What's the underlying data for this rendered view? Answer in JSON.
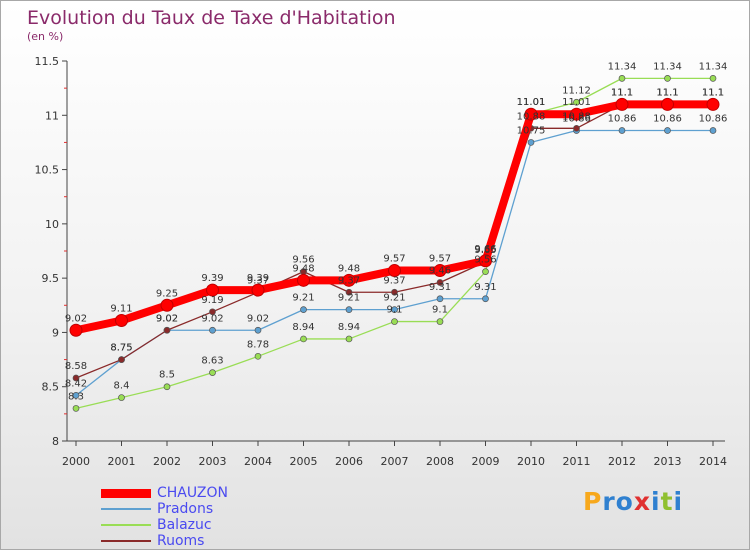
{
  "header": {
    "title": "Evolution du Taux de Taxe d'Habitation",
    "unit": "(en %)"
  },
  "chart_data": {
    "type": "line",
    "title": "Evolution du Taux de Taxe d'Habitation",
    "ylabel": "(en %)",
    "xlabel": "",
    "ylim": [
      8,
      11.5
    ],
    "y_ticks": [
      "8",
      "8.5",
      "9",
      "9.5",
      "10",
      "10.5",
      "11",
      "11.5"
    ],
    "categories": [
      "2000",
      "2001",
      "2002",
      "2003",
      "2004",
      "2005",
      "2006",
      "2007",
      "2008",
      "2009",
      "2010",
      "2011",
      "2012",
      "2013",
      "2014"
    ],
    "grid": false,
    "legend": "bottom-left",
    "series": [
      {
        "name": "CHAUZON",
        "color": "#ff0000",
        "values": [
          9.02,
          9.11,
          9.25,
          9.39,
          9.39,
          9.48,
          9.48,
          9.57,
          9.57,
          9.66,
          11.01,
          11.01,
          11.1,
          11.1,
          11.1
        ],
        "labels": [
          "9.02",
          "9.11",
          "9.25",
          "9.39",
          "9.39",
          "9.48",
          "9.48",
          "9.57",
          "9.57",
          "9.66",
          "11.01",
          "11.01",
          "11.1",
          "11.1",
          "11.1"
        ]
      },
      {
        "name": "Pradons",
        "color": "#5ea0d0",
        "values": [
          8.42,
          8.75,
          9.02,
          9.02,
          9.02,
          9.21,
          9.21,
          9.21,
          9.31,
          9.31,
          10.75,
          10.86,
          10.86,
          10.86,
          10.86
        ],
        "labels": [
          "8.42",
          "8.75",
          "9.02",
          "9.02",
          "9.02",
          "9.21",
          "9.21",
          "9.21",
          "9.31",
          "9.31",
          "10.75",
          "10.86",
          "10.86",
          "10.86",
          "10.86"
        ]
      },
      {
        "name": "Balazuc",
        "color": "#99dd55",
        "values": [
          8.3,
          8.4,
          8.5,
          8.63,
          8.78,
          8.94,
          8.94,
          9.1,
          9.1,
          9.56,
          11.01,
          11.12,
          11.34,
          11.34,
          11.34
        ],
        "labels": [
          "8.3",
          "8.4",
          "8.5",
          "8.63",
          "8.78",
          "8.94",
          "8.94",
          "9.1",
          "9.1",
          "9.56",
          "11.01",
          "11.12",
          "11.34",
          "11.34",
          "11.34"
        ]
      },
      {
        "name": "Ruoms",
        "color": "#8a2a2a",
        "values": [
          8.58,
          8.75,
          9.02,
          9.19,
          9.37,
          9.56,
          9.37,
          9.37,
          9.46,
          9.65,
          10.88,
          10.88,
          11.1,
          11.1,
          11.1
        ],
        "labels": [
          "8.58",
          "8.75",
          "9.02",
          "9.19",
          "9.37",
          "9.56",
          "9.37",
          "9.37",
          "9.46",
          "9.65",
          "10.88",
          "10.88",
          "11.1",
          "11.1",
          "11.1"
        ]
      }
    ]
  },
  "legend": {
    "items": [
      {
        "name": "CHAUZON"
      },
      {
        "name": "Pradons"
      },
      {
        "name": "Balazuc"
      },
      {
        "name": "Ruoms"
      }
    ]
  },
  "logo": {
    "letters": [
      "P",
      "r",
      "o",
      "x",
      "i",
      "t",
      "i"
    ],
    "colors": [
      "#f7a81c",
      "#2f80d0",
      "#2f80d0",
      "#e03030",
      "#2f80d0",
      "#90c030",
      "#2f80d0"
    ]
  }
}
